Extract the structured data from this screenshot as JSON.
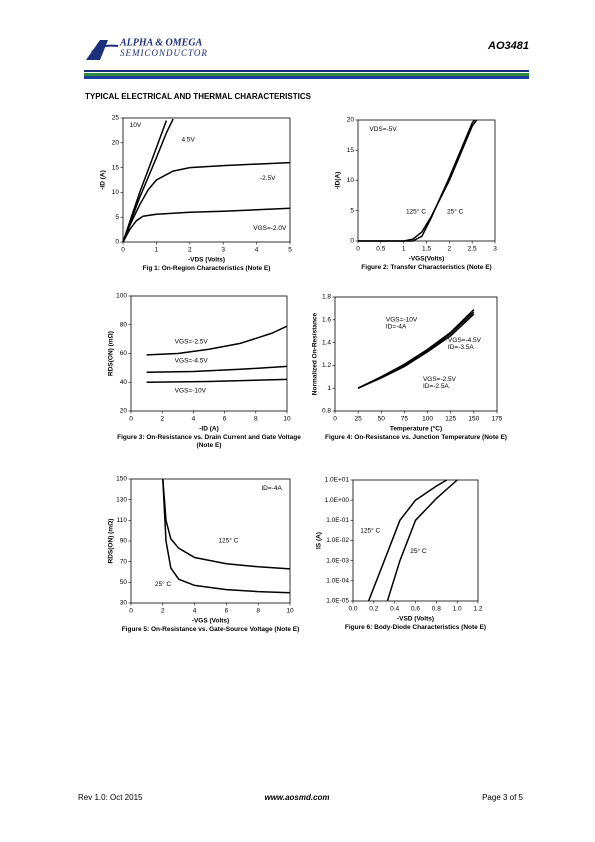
{
  "header": {
    "company": "ALPHA & OMEGA",
    "division": "SEMICONDUCTOR",
    "part": "AO3481"
  },
  "section_title": "TYPICAL ELECTRICAL AND THERMAL CHARACTERISTICS",
  "chart_data": [
    {
      "type": "line",
      "title": "Fig 1: On-Region Characteristics (Note E)",
      "xlabel": "-VDS (Volts)",
      "ylabel": "-ID (A)",
      "xlim": [
        0,
        5
      ],
      "ylim": [
        0,
        25
      ],
      "xticks": [
        0,
        1,
        2,
        3,
        4,
        5
      ],
      "yticks": [
        0,
        5,
        10,
        15,
        20,
        25
      ],
      "color": "#000000",
      "series": [
        {
          "x": [
            0,
            0.25,
            0.5,
            0.75,
            1,
            1.3
          ],
          "values": [
            0,
            5,
            10,
            14.5,
            19,
            24.5
          ]
        },
        {
          "x": [
            0,
            0.25,
            0.5,
            0.75,
            1,
            1.3,
            1.5
          ],
          "values": [
            0,
            4.5,
            9,
            13,
            17,
            22,
            24.8
          ]
        },
        {
          "x": [
            0,
            0.25,
            0.5,
            0.75,
            1,
            1.5,
            2,
            3,
            4,
            5
          ],
          "values": [
            0,
            4,
            7.5,
            10.5,
            12.5,
            14.3,
            15,
            15.4,
            15.7,
            16
          ]
        },
        {
          "x": [
            0,
            0.2,
            0.4,
            0.6,
            1,
            2,
            3,
            4,
            5
          ],
          "values": [
            0,
            2.5,
            4.3,
            5.2,
            5.6,
            6,
            6.2,
            6.5,
            6.8
          ]
        }
      ],
      "annotations": [
        "10V",
        "4.5V",
        "-2.5V",
        "VGS=-2.0V"
      ]
    },
    {
      "type": "line",
      "title": "Figure 2: Transfer Characteristics (Note E)",
      "xlabel": "-VGS(Volts)",
      "ylabel": "-ID(A)",
      "xlim": [
        0,
        3
      ],
      "ylim": [
        0,
        20
      ],
      "xticks": [
        0,
        0.5,
        1,
        1.5,
        2,
        2.5,
        3
      ],
      "yticks": [
        0,
        5,
        10,
        15,
        20
      ],
      "color": "#000000",
      "series": [
        {
          "x": [
            0,
            1,
            1.2,
            1.4,
            1.6,
            2,
            2.5,
            2.6
          ],
          "values": [
            0,
            0,
            0.3,
            1.5,
            4,
            10,
            19,
            20
          ]
        },
        {
          "x": [
            0,
            1.2,
            1.4,
            1.6,
            2,
            2.5,
            2.55
          ],
          "values": [
            0,
            0,
            0.8,
            3.8,
            10.5,
            19.5,
            20
          ]
        }
      ],
      "annotations": [
        "VDS=-5V",
        "125° C",
        "25° C"
      ]
    },
    {
      "type": "line",
      "title": "Figure 3: On-Resistance vs. Drain Current and Gate Voltage (Note E)",
      "xlabel": "-ID (A)",
      "ylabel": "RDS(ON) (mΩ)",
      "xlim": [
        0,
        10
      ],
      "ylim": [
        20,
        100
      ],
      "xticks": [
        0,
        2,
        4,
        6,
        8,
        10
      ],
      "yticks": [
        20,
        40,
        60,
        80,
        100
      ],
      "color": "#000000",
      "series": [
        {
          "x": [
            1,
            3,
            5,
            7,
            9,
            10
          ],
          "values": [
            59,
            60,
            63,
            67,
            74,
            79
          ]
        },
        {
          "x": [
            1,
            4,
            7,
            10
          ],
          "values": [
            47,
            47.5,
            49,
            51
          ]
        },
        {
          "x": [
            1,
            5,
            10
          ],
          "values": [
            40,
            40.5,
            42
          ]
        }
      ],
      "annotations": [
        "VGS=-2.5V",
        "VGS=-4.5V",
        "VGS=-10V"
      ]
    },
    {
      "type": "line",
      "title": "Figure 4: On-Resistance vs. Junction Temperature (Note E)",
      "xlabel": "Temperature (°C)",
      "ylabel": "Normalized On-Resistance",
      "xlim": [
        0,
        175
      ],
      "ylim": [
        0.8,
        1.8
      ],
      "xticks": [
        0,
        25,
        50,
        75,
        100,
        125,
        150,
        175
      ],
      "yticks": [
        0.8,
        1,
        1.2,
        1.4,
        1.6,
        1.8
      ],
      "color": "#000000",
      "series": [
        {
          "x": [
            25,
            50,
            75,
            100,
            125,
            150
          ],
          "values": [
            1,
            1.1,
            1.21,
            1.34,
            1.49,
            1.69
          ]
        },
        {
          "x": [
            25,
            50,
            75,
            100,
            125,
            150
          ],
          "values": [
            1,
            1.1,
            1.2,
            1.33,
            1.48,
            1.67
          ]
        },
        {
          "x": [
            25,
            50,
            75,
            100,
            125,
            150
          ],
          "values": [
            1,
            1.09,
            1.19,
            1.32,
            1.46,
            1.65
          ]
        }
      ],
      "annotations": [
        [
          "VGS=-10V",
          "ID=-4A"
        ],
        [
          "VGS=-4.5V",
          "ID=-3.5A"
        ],
        [
          "VGS=-2.5V",
          "ID=-2.5A"
        ]
      ]
    },
    {
      "type": "line",
      "title": "Figure 5: On-Resistance vs. Gate-Source Voltage (Note E)",
      "xlabel": "-VGS (Volts)",
      "ylabel": "RDS(ON) (mΩ)",
      "xlim": [
        0,
        10
      ],
      "ylim": [
        30,
        150
      ],
      "xticks": [
        0,
        2,
        4,
        6,
        8,
        10
      ],
      "yticks": [
        30,
        50,
        70,
        90,
        110,
        130,
        150
      ],
      "color": "#000000",
      "series": [
        {
          "x": [
            2,
            2.2,
            2.5,
            3,
            4,
            6,
            8,
            10
          ],
          "values": [
            150,
            110,
            92,
            83,
            74,
            68,
            65,
            63
          ]
        },
        {
          "x": [
            2,
            2.2,
            2.5,
            3,
            4,
            6,
            8,
            10
          ],
          "values": [
            150,
            90,
            64,
            53,
            47,
            43,
            41,
            40
          ]
        }
      ],
      "annotations": [
        "ID=-4A",
        "125° C",
        "25° C"
      ]
    },
    {
      "type": "line",
      "title": "Figure 6: Body-Diode Characteristics (Note E)",
      "xlabel": "-VSD (Volts)",
      "ylabel": "IS (A)",
      "log_y": true,
      "xlim": [
        0,
        1.2
      ],
      "ylim": [
        1e-05,
        10
      ],
      "xticks": [
        {
          "value": 0,
          "label": "0.0"
        },
        0.2,
        0.4,
        0.6,
        0.8,
        {
          "value": 1,
          "label": "1.0"
        },
        1.2
      ],
      "yticks": [
        {
          "value": 10,
          "label": "1.0E+01"
        },
        {
          "value": 1,
          "label": "1.0E+00"
        },
        {
          "value": 0.1,
          "label": "1.0E-01"
        },
        {
          "value": 0.01,
          "label": "1.0E-02"
        },
        {
          "value": 0.001,
          "label": "1.0E-03"
        },
        {
          "value": 0.0001,
          "label": "1.0E-04"
        },
        {
          "value": 1e-05,
          "label": "1.0E-05"
        }
      ],
      "color": "#000000",
      "series": [
        {
          "x": [
            0.15,
            0.3,
            0.45,
            0.6,
            0.8,
            0.9
          ],
          "values": [
            1e-05,
            0.001,
            0.1,
            1,
            5,
            10
          ]
        },
        {
          "x": [
            0.33,
            0.45,
            0.6,
            0.8,
            1.0
          ],
          "values": [
            1e-05,
            0.001,
            0.1,
            1.2,
            10
          ]
        }
      ],
      "annotations": [
        "125° C",
        "25° C"
      ]
    }
  ],
  "footer": {
    "revision": "Rev 1.0: Oct 2015",
    "website": "www.aosmd.com",
    "page": "Page 3 of 5"
  }
}
